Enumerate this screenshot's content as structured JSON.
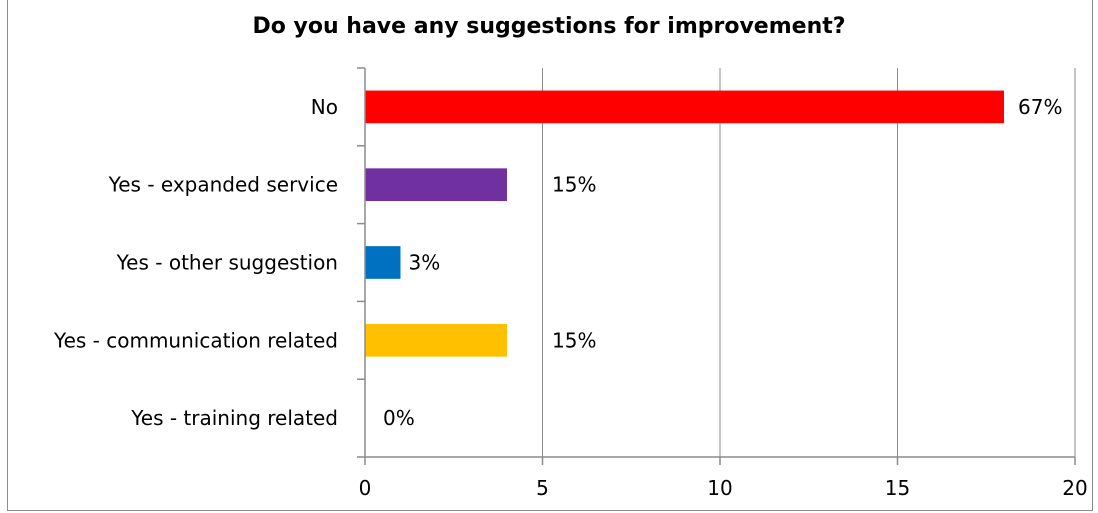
{
  "chart_data": {
    "type": "bar",
    "orientation": "horizontal",
    "title": "Do you have any suggestions for improvement?",
    "categories": [
      "No",
      "Yes - expanded service",
      "Yes - other suggestion",
      "Yes - communication related",
      "Yes - training related"
    ],
    "values": [
      18,
      4,
      1,
      4,
      0
    ],
    "data_labels": [
      "67%",
      "15%",
      "3%",
      "15%",
      "0%"
    ],
    "colors": [
      "#ff0000",
      "#7030a0",
      "#0070c0",
      "#ffc000",
      "#ffffff"
    ],
    "xlim": [
      0,
      20
    ],
    "xticks": [
      0,
      5,
      10,
      15,
      20
    ],
    "xtick_labels": [
      "0",
      "5",
      "10",
      "15",
      "20"
    ],
    "grid": true,
    "legend": "none"
  }
}
